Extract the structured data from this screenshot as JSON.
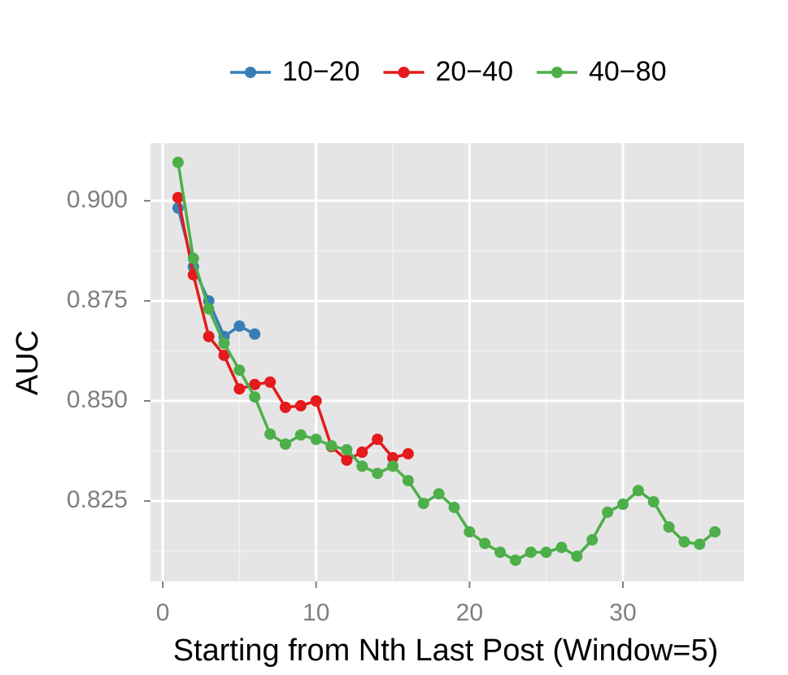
{
  "chart_data": {
    "type": "line",
    "xlabel": "Starting from Nth Last Post (Window=5)",
    "ylabel": "AUC",
    "xlim": [
      -0.8,
      37.9
    ],
    "xticks": [
      0,
      10,
      20,
      30
    ],
    "x_minor_ticks": [
      5,
      15,
      25,
      35
    ],
    "ylim": [
      0.8049,
      0.9144
    ],
    "yticks": [
      {
        "value": 0.825,
        "label": "0.825"
      },
      {
        "value": 0.85,
        "label": "0.850"
      },
      {
        "value": 0.875,
        "label": "0.875"
      },
      {
        "value": 0.9,
        "label": "0.900"
      }
    ],
    "y_minor_ticks": [
      0.8125,
      0.8375,
      0.8625,
      0.8875
    ],
    "grid": true,
    "legend": "top",
    "series": [
      {
        "name": "10−20",
        "color": "#377eb8",
        "x": [
          1,
          2,
          3,
          4,
          5,
          6
        ],
        "values": [
          0.8982,
          0.8835,
          0.875,
          0.8661,
          0.8687,
          0.8667
        ]
      },
      {
        "name": "20−40",
        "color": "#e41a1c",
        "x": [
          1,
          2,
          3,
          4,
          5,
          6,
          7,
          8,
          9,
          10,
          11,
          12,
          13,
          14,
          15,
          16
        ],
        "values": [
          0.9008,
          0.8815,
          0.8661,
          0.8614,
          0.853,
          0.8541,
          0.8547,
          0.8484,
          0.8488,
          0.85,
          0.8386,
          0.8352,
          0.8372,
          0.8404,
          0.8358,
          0.8368
        ]
      },
      {
        "name": "40−80",
        "color": "#4daf4a",
        "x": [
          1,
          2,
          3,
          4,
          5,
          6,
          7,
          8,
          9,
          10,
          11,
          12,
          13,
          14,
          15,
          16,
          17,
          18,
          19,
          20,
          21,
          22,
          23,
          24,
          25,
          26,
          27,
          28,
          29,
          30,
          31,
          32,
          33,
          34,
          35,
          36
        ],
        "values": [
          0.9096,
          0.8856,
          0.873,
          0.8644,
          0.8577,
          0.851,
          0.8417,
          0.8392,
          0.8415,
          0.8404,
          0.8388,
          0.8378,
          0.8337,
          0.8319,
          0.8337,
          0.8301,
          0.8244,
          0.8268,
          0.8234,
          0.8173,
          0.8144,
          0.8122,
          0.8102,
          0.8122,
          0.8122,
          0.8134,
          0.8112,
          0.8153,
          0.8222,
          0.8242,
          0.8276,
          0.8248,
          0.8185,
          0.8148,
          0.8142,
          0.8173
        ]
      }
    ]
  }
}
